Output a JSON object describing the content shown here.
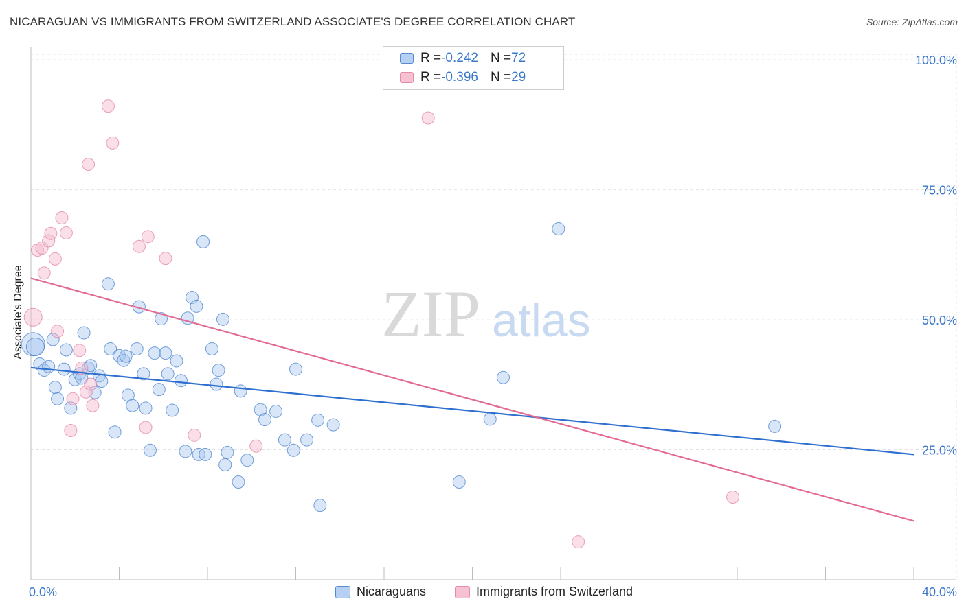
{
  "title": "NICARAGUAN VS IMMIGRANTS FROM SWITZERLAND ASSOCIATE'S DEGREE CORRELATION CHART",
  "source": "Source: ZipAtlas.com",
  "watermark": {
    "zip": "ZIP",
    "atlas": "atlas"
  },
  "legend_stats": [
    {
      "r_label": "R = ",
      "r_value": "-0.242",
      "n_label": "N = ",
      "n_value": "72",
      "color": "#a9c8f0"
    },
    {
      "r_label": "R = ",
      "r_value": "-0.396",
      "n_label": "N = ",
      "n_value": "29",
      "color": "#f5b8cb"
    }
  ],
  "bottom_legend": [
    {
      "label": "Nicaraguans",
      "color": "#a9c8f0"
    },
    {
      "label": "Immigrants from Switzerland",
      "color": "#f5b8cb"
    }
  ],
  "chart_data": {
    "type": "scatter",
    "title": "NICARAGUAN VS IMMIGRANTS FROM SWITZERLAND ASSOCIATE'S DEGREE CORRELATION CHART",
    "xlabel": "",
    "ylabel": "Associate's Degree",
    "xlim": [
      0,
      40
    ],
    "ylim": [
      0,
      102
    ],
    "x_tick_labels": [
      "0.0%",
      "40.0%"
    ],
    "y_ticks": [
      25,
      50,
      75,
      100
    ],
    "y_tick_labels": [
      "25.0%",
      "50.0%",
      "75.0%",
      "100.0%"
    ],
    "grid": true,
    "legend_position": "top-center",
    "series": [
      {
        "name": "Nicaraguans",
        "color": "#a9c8f0",
        "stroke": "#3b78c9",
        "trend": {
          "x": [
            0,
            40
          ],
          "y": [
            40.8,
            24.1
          ],
          "color": "#2f6fd0"
        },
        "points": [
          [
            0.1,
            45.3,
            3
          ],
          [
            0.2,
            44.8,
            2
          ],
          [
            0.4,
            41.5,
            1
          ],
          [
            0.6,
            40.3,
            1
          ],
          [
            0.8,
            41.0,
            1
          ],
          [
            1.0,
            46.2,
            1
          ],
          [
            1.1,
            37.0,
            1
          ],
          [
            1.2,
            34.8,
            1
          ],
          [
            1.5,
            40.5,
            1
          ],
          [
            1.6,
            44.2,
            1
          ],
          [
            1.8,
            33.0,
            1
          ],
          [
            2.0,
            38.5,
            1
          ],
          [
            2.2,
            39.6,
            1
          ],
          [
            2.3,
            38.8,
            1
          ],
          [
            2.4,
            47.5,
            1
          ],
          [
            2.6,
            40.7,
            1
          ],
          [
            2.7,
            41.2,
            1
          ],
          [
            2.9,
            36.0,
            1
          ],
          [
            3.1,
            39.2,
            1
          ],
          [
            3.2,
            38.2,
            1
          ],
          [
            3.5,
            56.9,
            1
          ],
          [
            3.6,
            44.4,
            1
          ],
          [
            3.8,
            28.4,
            1
          ],
          [
            4.0,
            43.1,
            1
          ],
          [
            4.2,
            42.2,
            1
          ],
          [
            4.3,
            43.0,
            1
          ],
          [
            4.4,
            35.5,
            1
          ],
          [
            4.6,
            33.5,
            1
          ],
          [
            4.8,
            44.4,
            1
          ],
          [
            4.9,
            52.5,
            1
          ],
          [
            5.1,
            39.6,
            1
          ],
          [
            5.2,
            33.0,
            1
          ],
          [
            5.4,
            24.9,
            1
          ],
          [
            5.6,
            43.6,
            1
          ],
          [
            5.8,
            36.6,
            1
          ],
          [
            5.9,
            50.2,
            1
          ],
          [
            6.1,
            43.6,
            1
          ],
          [
            6.2,
            39.6,
            1
          ],
          [
            6.4,
            32.6,
            1
          ],
          [
            6.6,
            42.1,
            1
          ],
          [
            6.8,
            38.3,
            1
          ],
          [
            7.0,
            24.7,
            1
          ],
          [
            7.1,
            50.3,
            1
          ],
          [
            7.3,
            54.3,
            1
          ],
          [
            7.5,
            52.6,
            1
          ],
          [
            7.6,
            24.1,
            1
          ],
          [
            7.8,
            65.0,
            1
          ],
          [
            7.9,
            24.1,
            1
          ],
          [
            8.2,
            44.4,
            1
          ],
          [
            8.4,
            37.6,
            1
          ],
          [
            8.5,
            40.3,
            1
          ],
          [
            8.7,
            50.1,
            1
          ],
          [
            8.8,
            22.1,
            1
          ],
          [
            8.9,
            24.5,
            1
          ],
          [
            9.4,
            18.8,
            1
          ],
          [
            9.5,
            36.3,
            1
          ],
          [
            9.8,
            23.0,
            1
          ],
          [
            10.4,
            32.7,
            1
          ],
          [
            10.6,
            30.8,
            1
          ],
          [
            11.1,
            32.4,
            1
          ],
          [
            11.5,
            26.9,
            1
          ],
          [
            11.9,
            24.9,
            1
          ],
          [
            12.0,
            40.5,
            1
          ],
          [
            12.5,
            26.9,
            1
          ],
          [
            13.0,
            30.7,
            1
          ],
          [
            13.1,
            14.3,
            1
          ],
          [
            13.7,
            29.8,
            1
          ],
          [
            19.4,
            18.8,
            1
          ],
          [
            20.8,
            30.9,
            1
          ],
          [
            21.4,
            38.9,
            1
          ],
          [
            23.9,
            67.5,
            1
          ],
          [
            33.7,
            29.5,
            1
          ]
        ]
      },
      {
        "name": "Immigrants from Switzerland",
        "color": "#f5b8cb",
        "stroke": "#e07a9c",
        "trend": {
          "x": [
            0,
            40
          ],
          "y": [
            58.0,
            11.3
          ],
          "color": "#e26a93"
        },
        "points": [
          [
            0.1,
            50.5,
            2
          ],
          [
            0.3,
            63.4,
            1
          ],
          [
            0.5,
            63.8,
            1
          ],
          [
            0.6,
            59.0,
            1
          ],
          [
            0.8,
            65.2,
            1
          ],
          [
            0.9,
            66.6,
            1
          ],
          [
            1.1,
            61.7,
            1
          ],
          [
            1.2,
            47.8,
            1
          ],
          [
            1.4,
            69.6,
            1
          ],
          [
            1.6,
            66.7,
            1
          ],
          [
            1.8,
            28.7,
            1
          ],
          [
            1.9,
            34.8,
            1
          ],
          [
            2.2,
            44.1,
            1
          ],
          [
            2.3,
            40.7,
            1
          ],
          [
            2.5,
            36.1,
            1
          ],
          [
            2.6,
            79.9,
            1
          ],
          [
            2.7,
            37.6,
            1
          ],
          [
            2.8,
            33.5,
            1
          ],
          [
            3.5,
            91.1,
            1
          ],
          [
            3.7,
            84.0,
            1
          ],
          [
            4.9,
            64.1,
            1
          ],
          [
            5.2,
            29.3,
            1
          ],
          [
            5.3,
            66.0,
            1
          ],
          [
            6.1,
            61.8,
            1
          ],
          [
            7.4,
            27.8,
            1
          ],
          [
            10.2,
            25.7,
            1
          ],
          [
            18.0,
            88.8,
            1
          ],
          [
            24.8,
            7.3,
            1
          ],
          [
            31.8,
            15.9,
            1
          ]
        ]
      }
    ]
  }
}
